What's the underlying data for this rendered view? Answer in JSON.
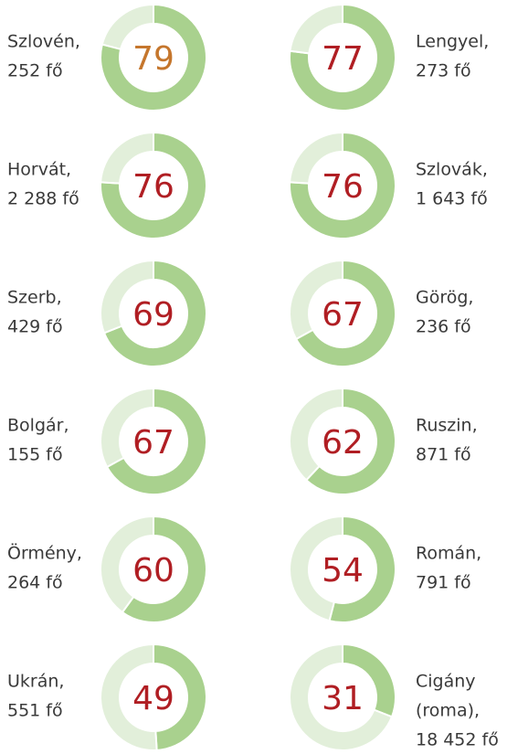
{
  "chart_data": [
    {
      "type": "donut",
      "label": [
        "Szlovén,",
        "252 fő"
      ],
      "values": [
        79,
        21
      ],
      "colors": [
        "#a9d18e",
        "#e2efda"
      ],
      "label_color": "#c5762c"
    },
    {
      "type": "donut",
      "label": [
        "Lengyel,",
        "273 fő"
      ],
      "values": [
        77,
        23
      ],
      "colors": [
        "#a9d18e",
        "#e2efda"
      ],
      "label_color": "#b01e23"
    },
    {
      "type": "donut",
      "label": [
        "Horvát,",
        "2 288 fő"
      ],
      "values": [
        76,
        24
      ],
      "colors": [
        "#a9d18e",
        "#e2efda"
      ],
      "label_color": "#b01e23"
    },
    {
      "type": "donut",
      "label": [
        "Szlovák,",
        "1 643 fő"
      ],
      "values": [
        76,
        24
      ],
      "colors": [
        "#a9d18e",
        "#e2efda"
      ],
      "label_color": "#b01e23"
    },
    {
      "type": "donut",
      "label": [
        "Szerb,",
        "429 fő"
      ],
      "values": [
        69,
        31
      ],
      "colors": [
        "#a9d18e",
        "#e2efda"
      ],
      "label_color": "#b01e23"
    },
    {
      "type": "donut",
      "label": [
        "Görög,",
        "236 fő"
      ],
      "values": [
        67,
        33
      ],
      "colors": [
        "#a9d18e",
        "#e2efda"
      ],
      "label_color": "#b01e23"
    },
    {
      "type": "donut",
      "label": [
        "Bolgár,",
        "155 fő"
      ],
      "values": [
        67,
        33
      ],
      "colors": [
        "#a9d18e",
        "#e2efda"
      ],
      "label_color": "#b01e23"
    },
    {
      "type": "donut",
      "label": [
        "Ruszin,",
        "871 fő"
      ],
      "values": [
        62,
        38
      ],
      "colors": [
        "#a9d18e",
        "#e2efda"
      ],
      "label_color": "#b01e23"
    },
    {
      "type": "donut",
      "label": [
        "Örmény,",
        "264 fő"
      ],
      "values": [
        60,
        40
      ],
      "colors": [
        "#a9d18e",
        "#e2efda"
      ],
      "label_color": "#b01e23"
    },
    {
      "type": "donut",
      "label": [
        "Román,",
        "791 fő"
      ],
      "values": [
        54,
        46
      ],
      "colors": [
        "#a9d18e",
        "#e2efda"
      ],
      "label_color": "#b01e23"
    },
    {
      "type": "donut",
      "label": [
        "Ukrán,",
        "551 fő"
      ],
      "values": [
        49,
        51
      ],
      "colors": [
        "#a9d18e",
        "#e2efda"
      ],
      "label_color": "#b01e23"
    },
    {
      "type": "donut",
      "label": [
        "Cigány",
        "(roma),",
        "18 452 fő"
      ],
      "values": [
        31,
        69
      ],
      "colors": [
        "#a9d18e",
        "#e2efda"
      ],
      "label_color": "#b01e23"
    }
  ]
}
